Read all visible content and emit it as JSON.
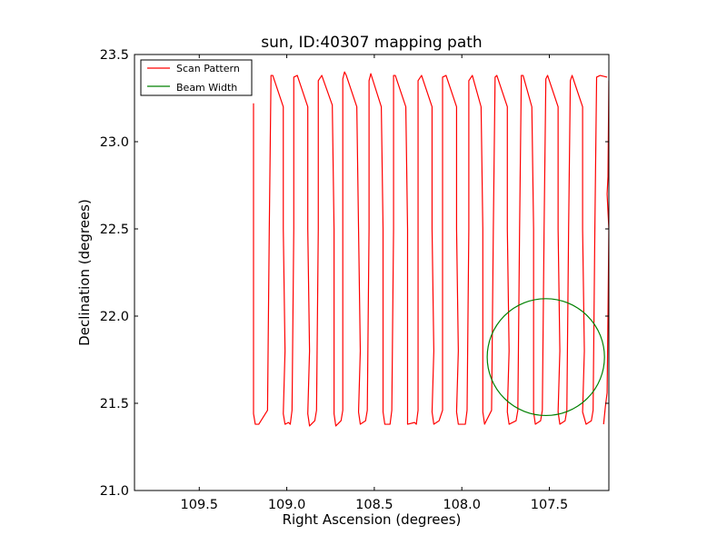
{
  "chart_data": {
    "type": "line",
    "title": "sun, ID:40307 mapping path",
    "xlabel": "Right Ascension (degrees)",
    "ylabel": "Declination (degrees)",
    "xlim": [
      109.87,
      107.16
    ],
    "ylim": [
      21.0,
      23.5
    ],
    "x_inverted": true,
    "xticks": [
      109.5,
      109.0,
      108.5,
      108.0,
      107.5
    ],
    "xtick_labels": [
      "109.5",
      "109.0",
      "108.5",
      "108.0",
      "107.5"
    ],
    "yticks": [
      21.0,
      21.5,
      22.0,
      22.5,
      23.0,
      23.5
    ],
    "ytick_labels": [
      "21.0",
      "21.5",
      "22.0",
      "22.5",
      "23.0",
      "23.5"
    ],
    "grid": false,
    "legend": {
      "placement": "top-left",
      "entries": [
        {
          "label": "Scan Pattern",
          "color": "#ff0000"
        },
        {
          "label": "Beam Width",
          "color": "#008000"
        }
      ]
    },
    "series": [
      {
        "name": "Scan Pattern",
        "color": "#ff0000",
        "points": [
          [
            109.19,
            23.22
          ],
          [
            109.19,
            22.5
          ],
          [
            109.19,
            21.8
          ],
          [
            109.19,
            21.44
          ],
          [
            109.18,
            21.38
          ],
          [
            109.16,
            21.38
          ],
          [
            109.11,
            21.46
          ],
          [
            109.1,
            22.5
          ],
          [
            109.09,
            23.38
          ],
          [
            109.08,
            23.38
          ],
          [
            109.02,
            23.2
          ],
          [
            109.02,
            22.5
          ],
          [
            109.01,
            21.8
          ],
          [
            109.02,
            21.44
          ],
          [
            109.01,
            21.38
          ],
          [
            108.99,
            21.39
          ],
          [
            108.98,
            21.38
          ],
          [
            108.97,
            21.46
          ],
          [
            108.96,
            22.5
          ],
          [
            108.96,
            23.37
          ],
          [
            108.94,
            23.38
          ],
          [
            108.88,
            23.2
          ],
          [
            108.88,
            22.5
          ],
          [
            108.87,
            21.8
          ],
          [
            108.88,
            21.44
          ],
          [
            108.87,
            21.37
          ],
          [
            108.84,
            21.4
          ],
          [
            108.83,
            21.46
          ],
          [
            108.82,
            22.5
          ],
          [
            108.82,
            23.35
          ],
          [
            108.8,
            23.38
          ],
          [
            108.74,
            23.21
          ],
          [
            108.73,
            22.5
          ],
          [
            108.73,
            21.8
          ],
          [
            108.73,
            21.44
          ],
          [
            108.72,
            21.37
          ],
          [
            108.69,
            21.4
          ],
          [
            108.68,
            21.46
          ],
          [
            108.68,
            22.5
          ],
          [
            108.68,
            23.36
          ],
          [
            108.67,
            23.4
          ],
          [
            108.66,
            23.38
          ],
          [
            108.6,
            23.2
          ],
          [
            108.59,
            22.5
          ],
          [
            108.58,
            21.8
          ],
          [
            108.59,
            21.45
          ],
          [
            108.58,
            21.38
          ],
          [
            108.55,
            21.4
          ],
          [
            108.54,
            21.46
          ],
          [
            108.53,
            22.5
          ],
          [
            108.53,
            23.35
          ],
          [
            108.52,
            23.39
          ],
          [
            108.46,
            23.2
          ],
          [
            108.45,
            22.5
          ],
          [
            108.45,
            21.8
          ],
          [
            108.45,
            21.45
          ],
          [
            108.44,
            21.38
          ],
          [
            108.41,
            21.38
          ],
          [
            108.4,
            21.46
          ],
          [
            108.39,
            22.5
          ],
          [
            108.39,
            23.38
          ],
          [
            108.38,
            23.38
          ],
          [
            108.32,
            23.2
          ],
          [
            108.31,
            22.5
          ],
          [
            108.31,
            21.8
          ],
          [
            108.31,
            21.46
          ],
          [
            108.31,
            21.38
          ],
          [
            108.27,
            21.39
          ],
          [
            108.26,
            21.38
          ],
          [
            108.25,
            21.46
          ],
          [
            108.25,
            22.5
          ],
          [
            108.25,
            23.35
          ],
          [
            108.23,
            23.38
          ],
          [
            108.17,
            23.2
          ],
          [
            108.17,
            22.5
          ],
          [
            108.16,
            21.8
          ],
          [
            108.17,
            21.45
          ],
          [
            108.16,
            21.38
          ],
          [
            108.13,
            21.4
          ],
          [
            108.11,
            21.46
          ],
          [
            108.11,
            22.5
          ],
          [
            108.11,
            23.37
          ],
          [
            108.09,
            23.38
          ],
          [
            108.03,
            23.2
          ],
          [
            108.03,
            22.5
          ],
          [
            108.02,
            21.8
          ],
          [
            108.03,
            21.45
          ],
          [
            108.02,
            21.38
          ],
          [
            107.98,
            21.38
          ],
          [
            107.97,
            21.46
          ],
          [
            107.96,
            22.5
          ],
          [
            107.96,
            23.35
          ],
          [
            107.94,
            23.38
          ],
          [
            107.89,
            23.2
          ],
          [
            107.88,
            22.5
          ],
          [
            107.88,
            21.8
          ],
          [
            107.88,
            21.45
          ],
          [
            107.87,
            21.38
          ],
          [
            107.83,
            21.46
          ],
          [
            107.82,
            22.5
          ],
          [
            107.81,
            23.37
          ],
          [
            107.8,
            23.38
          ],
          [
            107.74,
            23.2
          ],
          [
            107.74,
            22.5
          ],
          [
            107.73,
            21.8
          ],
          [
            107.74,
            21.45
          ],
          [
            107.73,
            21.38
          ],
          [
            107.69,
            21.4
          ],
          [
            107.68,
            21.46
          ],
          [
            107.67,
            22.5
          ],
          [
            107.66,
            23.38
          ],
          [
            107.65,
            23.38
          ],
          [
            107.6,
            23.2
          ],
          [
            107.59,
            22.5
          ],
          [
            107.59,
            21.8
          ],
          [
            107.59,
            21.45
          ],
          [
            107.58,
            21.38
          ],
          [
            107.55,
            21.4
          ],
          [
            107.54,
            21.46
          ],
          [
            107.53,
            22.5
          ],
          [
            107.52,
            23.36
          ],
          [
            107.51,
            23.38
          ],
          [
            107.45,
            23.2
          ],
          [
            107.45,
            22.5
          ],
          [
            107.44,
            21.8
          ],
          [
            107.45,
            21.45
          ],
          [
            107.44,
            21.38
          ],
          [
            107.41,
            21.4
          ],
          [
            107.4,
            21.46
          ],
          [
            107.39,
            22.5
          ],
          [
            107.38,
            23.35
          ],
          [
            107.37,
            23.38
          ],
          [
            107.31,
            23.2
          ],
          [
            107.31,
            22.5
          ],
          [
            107.3,
            21.8
          ],
          [
            107.31,
            21.45
          ],
          [
            107.29,
            21.38
          ],
          [
            107.26,
            21.4
          ],
          [
            107.25,
            21.46
          ],
          [
            107.24,
            22.5
          ],
          [
            107.23,
            23.37
          ],
          [
            107.21,
            23.38
          ],
          [
            107.17,
            23.37
          ]
        ]
      },
      {
        "name": "Scan Pattern (tail)",
        "color": "#ff0000",
        "points": [
          [
            107.16,
            23.35
          ],
          [
            107.165,
            22.8
          ],
          [
            107.17,
            22.7
          ],
          [
            107.16,
            22.5
          ],
          [
            107.165,
            22.0
          ],
          [
            107.17,
            21.56
          ],
          [
            107.18,
            21.48
          ],
          [
            107.19,
            21.38
          ]
        ]
      }
    ],
    "beam": {
      "name": "Beam Width",
      "color": "#008000",
      "center": [
        107.52,
        21.765
      ],
      "radius_deg": 0.335
    }
  }
}
